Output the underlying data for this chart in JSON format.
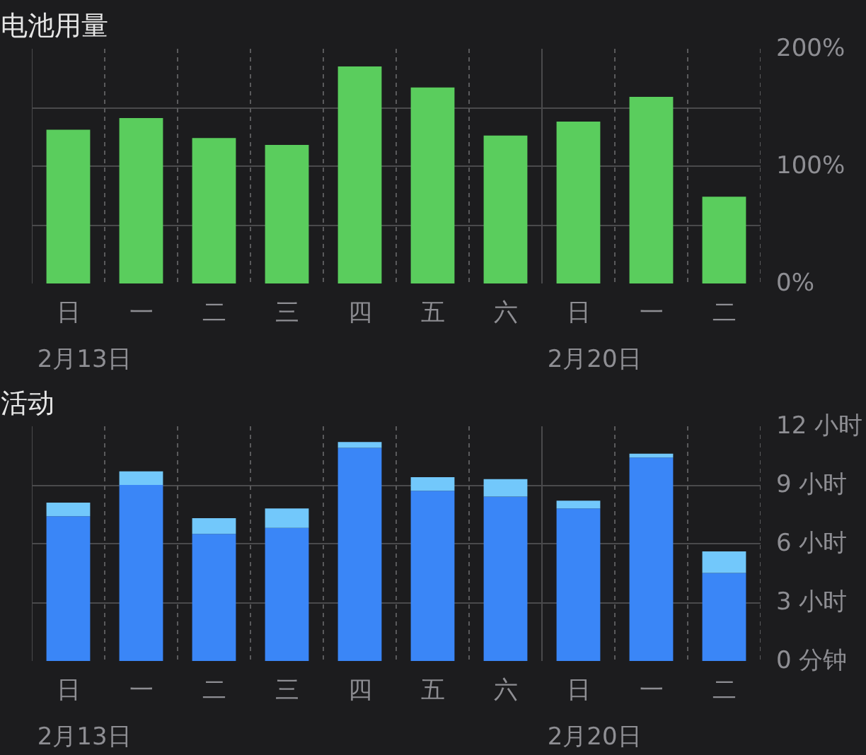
{
  "chart_data": [
    {
      "type": "bar",
      "title": "电池用量",
      "categories": [
        "日",
        "一",
        "二",
        "三",
        "四",
        "五",
        "六",
        "日",
        "一",
        "二"
      ],
      "values": [
        131,
        141,
        124,
        118,
        185,
        167,
        126,
        138,
        159,
        74
      ],
      "color": "#5acd5d",
      "ylim": [
        0,
        200
      ],
      "yticks": [
        {
          "value": 0,
          "label": "0%"
        },
        {
          "value": 50,
          "label": null
        },
        {
          "value": 100,
          "label": "100%"
        },
        {
          "value": 150,
          "label": null
        },
        {
          "value": 200,
          "label": "200%"
        }
      ],
      "grid": true,
      "annotations": [
        "2月13日",
        "2月20日"
      ]
    },
    {
      "type": "bar",
      "title": "活动",
      "stacked": true,
      "categories": [
        "日",
        "一",
        "二",
        "三",
        "四",
        "五",
        "六",
        "日",
        "一",
        "二"
      ],
      "series": [
        {
          "color": "#3a86f7",
          "values": [
            7.4,
            9.0,
            6.5,
            6.8,
            10.9,
            8.7,
            8.4,
            7.8,
            10.4,
            4.5
          ]
        },
        {
          "color": "#72c8fb",
          "values": [
            0.7,
            0.7,
            0.8,
            1.0,
            0.3,
            0.7,
            0.9,
            0.4,
            0.2,
            1.1
          ]
        }
      ],
      "ylim": [
        0,
        12
      ],
      "yticks": [
        {
          "value": 0,
          "label": "0 分钟"
        },
        {
          "value": 3,
          "label": "3 小时"
        },
        {
          "value": 6,
          "label": "6 小时"
        },
        {
          "value": 9,
          "label": "9 小时"
        },
        {
          "value": 12,
          "label": "12 小时"
        }
      ],
      "grid": true,
      "annotations": [
        "2月13日",
        "2月20日"
      ]
    }
  ]
}
